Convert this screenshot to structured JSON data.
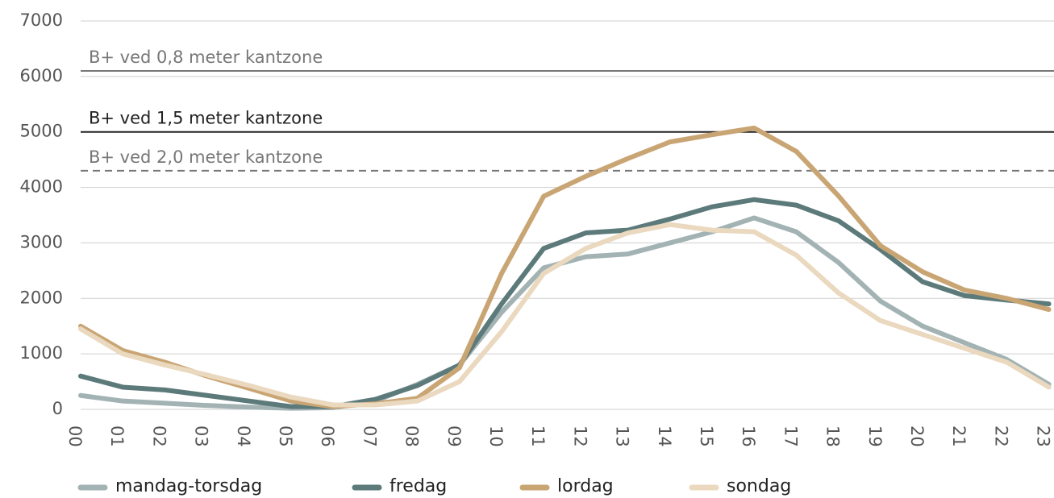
{
  "chart_data": {
    "type": "line",
    "categories": [
      "00",
      "01",
      "02",
      "03",
      "04",
      "05",
      "06",
      "07",
      "08",
      "09",
      "10",
      "11",
      "12",
      "13",
      "14",
      "15",
      "16",
      "17",
      "18",
      "19",
      "20",
      "21",
      "22",
      "23"
    ],
    "series": [
      {
        "name": "mandag-torsdag",
        "color": "#a3b3b4",
        "values": [
          250,
          150,
          110,
          70,
          40,
          20,
          30,
          150,
          450,
          800,
          1750,
          2550,
          2750,
          2800,
          3000,
          3200,
          3450,
          3200,
          2650,
          1950,
          1500,
          1200,
          900,
          450
        ]
      },
      {
        "name": "fredag",
        "color": "#5d7a7b",
        "values": [
          600,
          400,
          350,
          250,
          150,
          50,
          50,
          180,
          430,
          800,
          1900,
          2900,
          3180,
          3230,
          3430,
          3650,
          3780,
          3680,
          3400,
          2880,
          2300,
          2050,
          1970,
          1900
        ]
      },
      {
        "name": "lordag",
        "color": "#c9a574",
        "values": [
          1500,
          1060,
          850,
          600,
          380,
          150,
          50,
          100,
          200,
          750,
          2450,
          3840,
          4200,
          4520,
          4820,
          4950,
          5070,
          4650,
          3850,
          2950,
          2480,
          2150,
          2000,
          1800
        ]
      },
      {
        "name": "sondag",
        "color": "#ead8bf",
        "values": [
          1450,
          1000,
          800,
          620,
          430,
          220,
          80,
          80,
          150,
          500,
          1400,
          2450,
          2900,
          3180,
          3330,
          3230,
          3200,
          2780,
          2100,
          1600,
          1350,
          1100,
          850,
          400
        ]
      }
    ],
    "reference_lines": [
      {
        "label": "B+ ved 0,8 meter kantzone",
        "value": 6100,
        "style": "solid",
        "color": "#777777"
      },
      {
        "label": "B+ ved  1,5 meter kantzone",
        "value": 5000,
        "style": "solid",
        "color": "#222222"
      },
      {
        "label": "B+ ved 2,0 meter kantzone",
        "value": 4300,
        "style": "dashed",
        "color": "#777777"
      }
    ],
    "ylim": [
      0,
      7000
    ],
    "yticks": [
      0,
      1000,
      2000,
      3000,
      4000,
      5000,
      6000,
      7000
    ],
    "grid": true,
    "legend": "bottom"
  }
}
